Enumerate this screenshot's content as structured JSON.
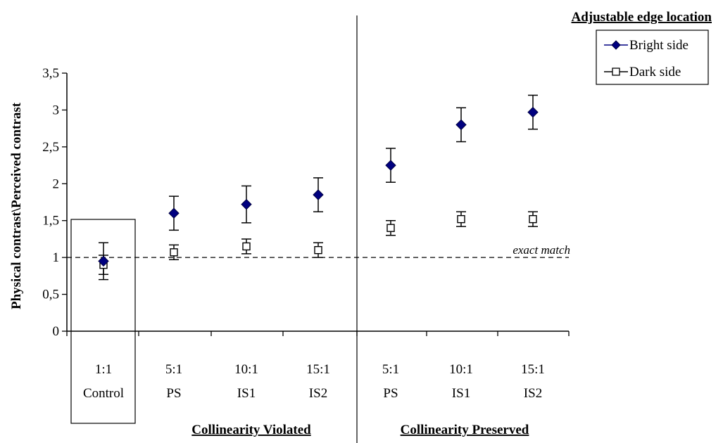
{
  "chart_data": {
    "type": "scatter",
    "title": "",
    "ylabel": "Physical contrast\\Perceived contrast",
    "ylim": [
      0,
      3.5
    ],
    "yticks": [
      "0",
      "0,5",
      "1",
      "1,5",
      "2",
      "2,5",
      "3",
      "3,5"
    ],
    "yticks_values": [
      0,
      0.5,
      1,
      1.5,
      2,
      2.5,
      3,
      3.5
    ],
    "grid": false,
    "legend": {
      "title": "Adjustable edge location",
      "placement": "top-right"
    },
    "categories": [
      {
        "ratio": "1:1",
        "name": "Control"
      },
      {
        "ratio": "5:1",
        "name": "PS"
      },
      {
        "ratio": "10:1",
        "name": "IS1"
      },
      {
        "ratio": "15:1",
        "name": "IS2"
      },
      {
        "ratio": "5:1",
        "name": "PS"
      },
      {
        "ratio": "10:1",
        "name": "IS1"
      },
      {
        "ratio": "15:1",
        "name": "IS2"
      }
    ],
    "groups": [
      {
        "label": "Collinearity Violated"
      },
      {
        "label": "Collinearity Preserved"
      }
    ],
    "series": [
      {
        "name": "Bright side",
        "marker": "filled-diamond",
        "color": "#000080",
        "values": [
          0.95,
          1.6,
          1.72,
          1.85,
          2.25,
          2.8,
          2.97
        ],
        "err": [
          0.25,
          0.23,
          0.25,
          0.23,
          0.23,
          0.23,
          0.23
        ]
      },
      {
        "name": "Dark side",
        "marker": "open-square",
        "color": "#000000",
        "values": [
          0.9,
          1.07,
          1.15,
          1.1,
          1.4,
          1.52,
          1.52
        ],
        "err": [
          0.13,
          0.1,
          0.1,
          0.1,
          0.1,
          0.1,
          0.1
        ]
      }
    ],
    "reference_line": {
      "y": 1,
      "label": "exact match"
    }
  }
}
